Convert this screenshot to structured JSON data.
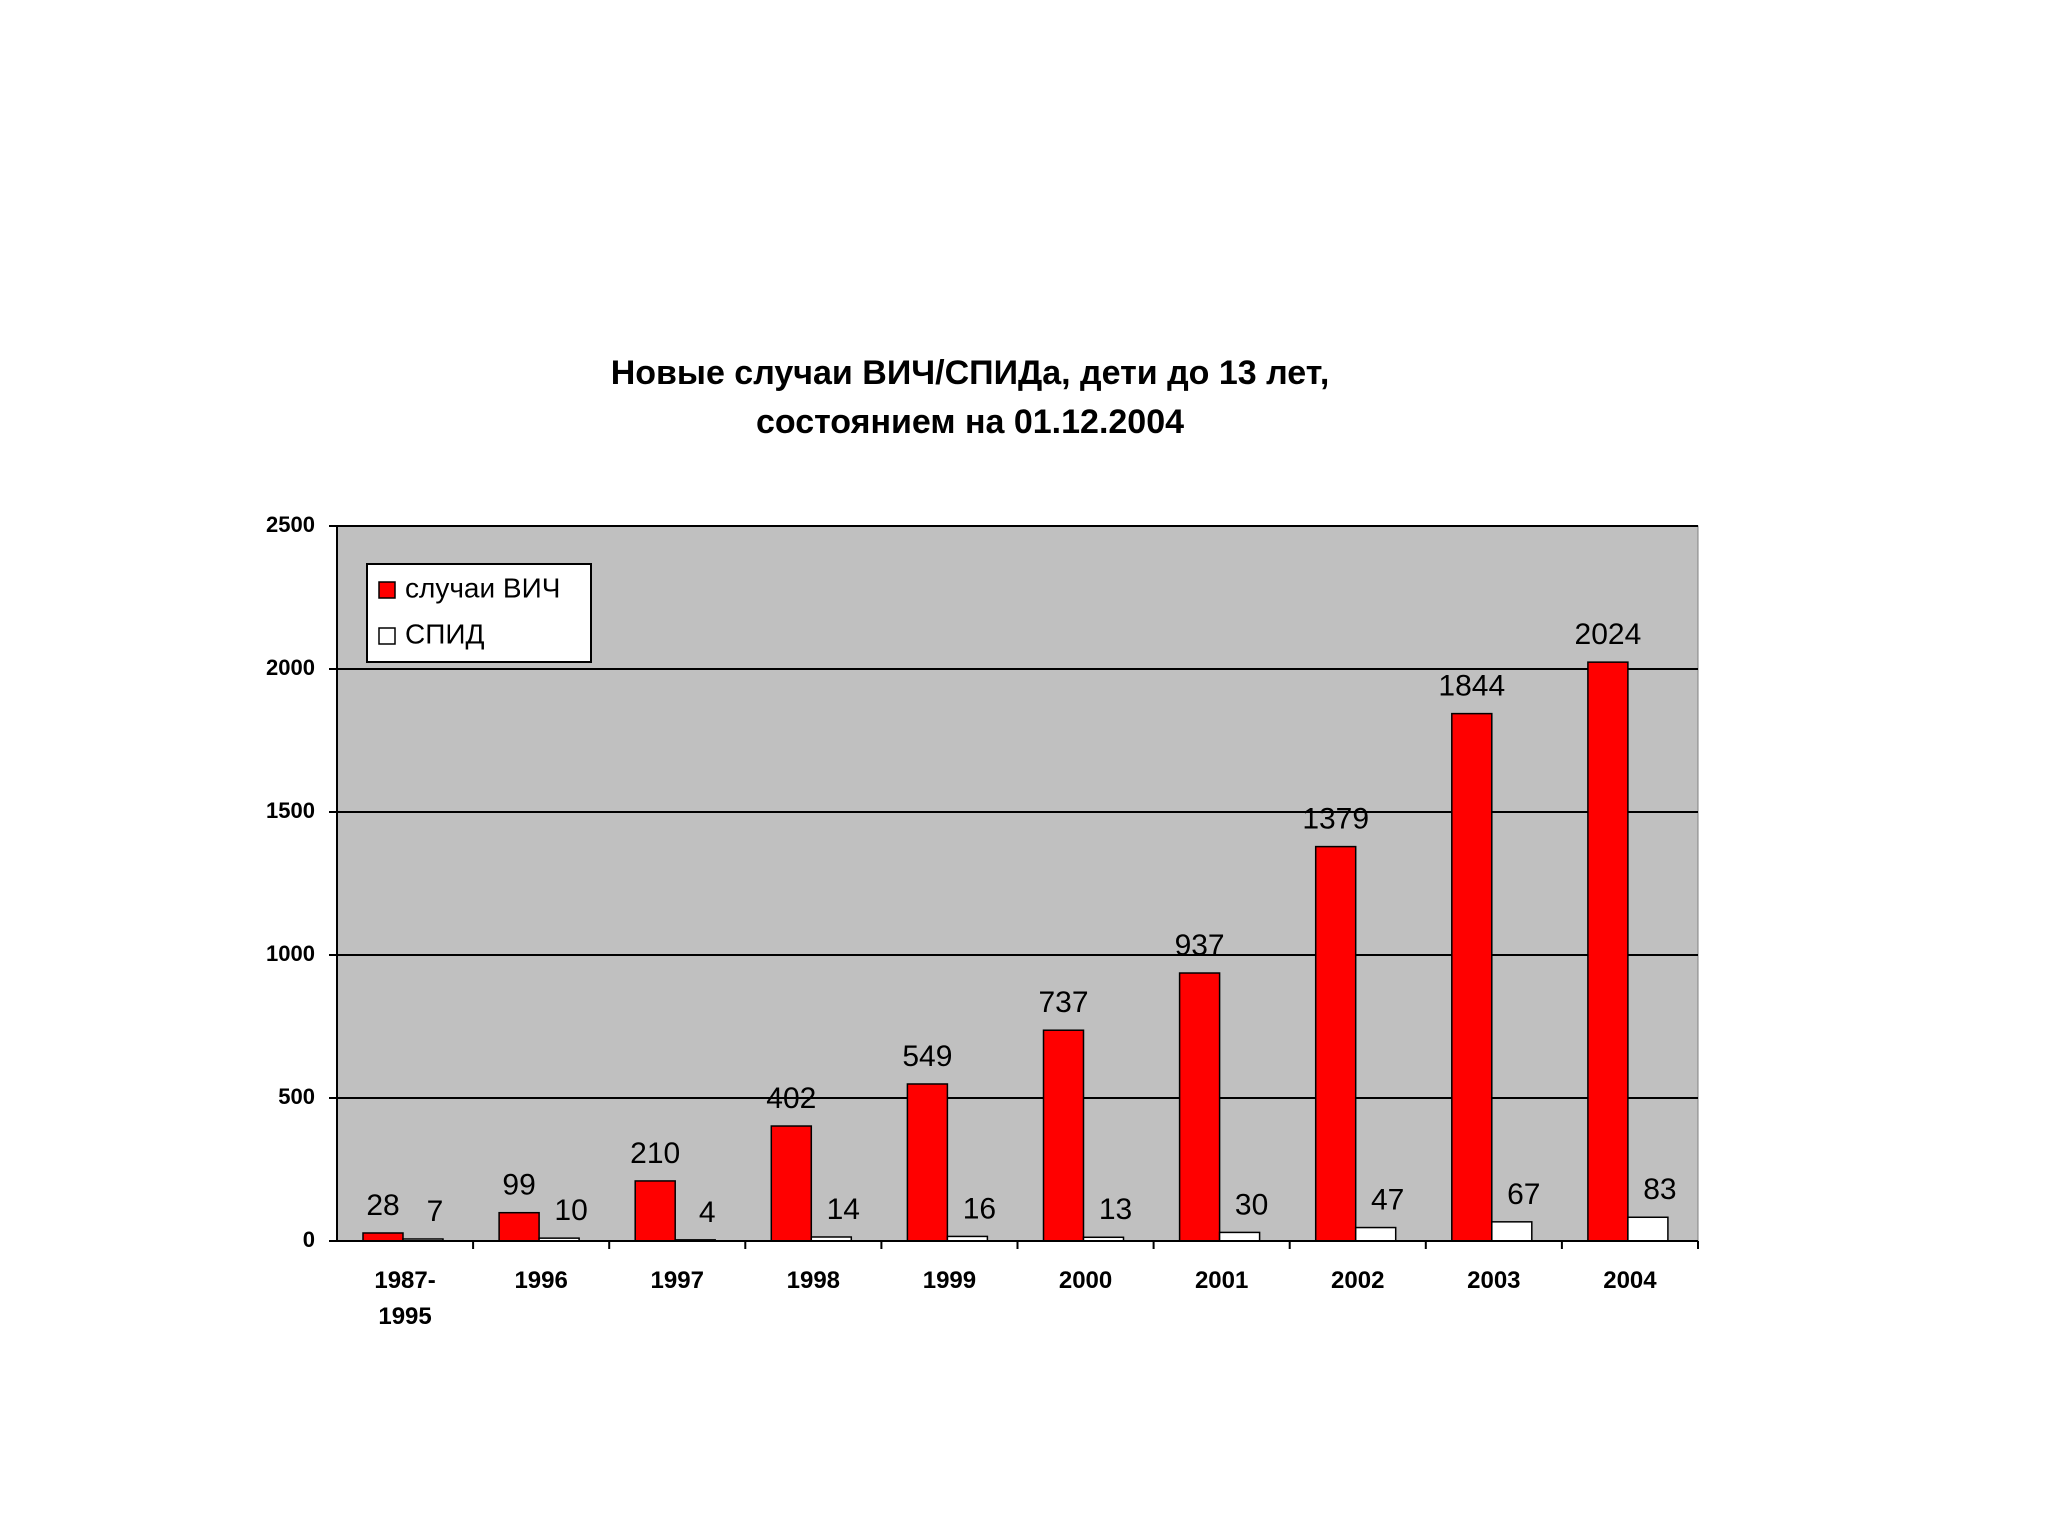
{
  "chart_data": {
    "type": "bar",
    "title": "Новые случаи ВИЧ/СПИДа, дети до 13 лет,",
    "subtitle": "состоянием на 01.12.2004",
    "categories": [
      "1987-\n1995",
      "1996",
      "1997",
      "1998",
      "1999",
      "2000",
      "2001",
      "2002",
      "2003",
      "2004"
    ],
    "series": [
      {
        "name": "случаи ВИЧ",
        "color": "#ff0000",
        "values": [
          28,
          99,
          210,
          402,
          549,
          737,
          937,
          1379,
          1844,
          2024
        ]
      },
      {
        "name": "СПИД",
        "color": "#ffffff",
        "values": [
          7,
          10,
          4,
          14,
          16,
          13,
          30,
          47,
          67,
          83
        ]
      }
    ],
    "ylim": [
      0,
      2500
    ],
    "yticks": [
      0,
      500,
      1000,
      1500,
      2000,
      2500
    ],
    "grid": true,
    "legend": "top-left"
  }
}
